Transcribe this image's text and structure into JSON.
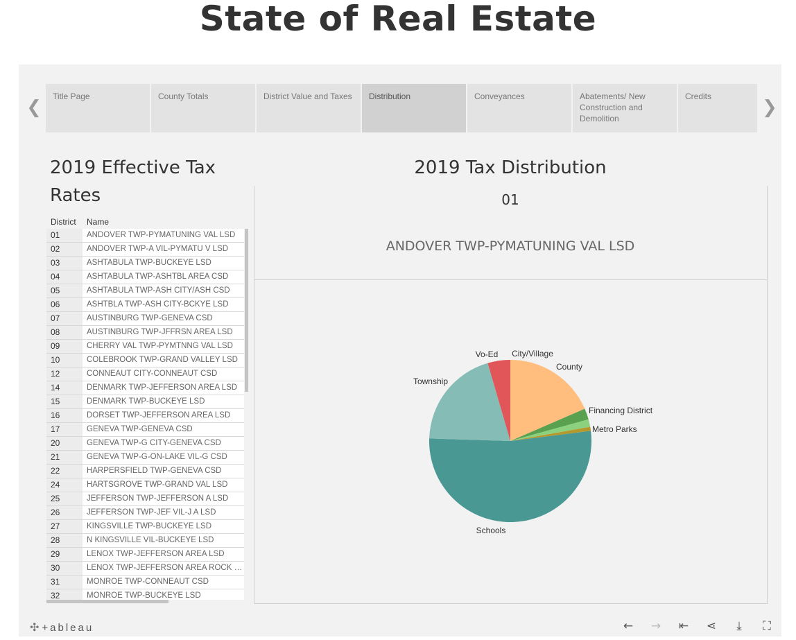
{
  "page": {
    "title": "State of Real Estate"
  },
  "nav": {
    "prev_icon": "chevron-left-icon",
    "next_icon": "chevron-right-icon",
    "tabs": [
      {
        "label": "Title Page"
      },
      {
        "label": "County Totals"
      },
      {
        "label": "District Value and Taxes"
      },
      {
        "label": "Distribution",
        "active": true
      },
      {
        "label": "Conveyances"
      },
      {
        "label": "Abatements/ New Construction and Demolition"
      },
      {
        "label": "Credits"
      }
    ]
  },
  "rates": {
    "title": "2019 Effective Tax Rates",
    "col_district": "District",
    "col_name": "Name",
    "rows": [
      [
        "01",
        "ANDOVER TWP-PYMATUNING VAL LSD"
      ],
      [
        "02",
        "ANDOVER TWP-A VIL-PYMATU V LSD"
      ],
      [
        "03",
        "ASHTABULA TWP-BUCKEYE LSD"
      ],
      [
        "04",
        "ASHTABULA TWP-ASHTBL AREA CSD"
      ],
      [
        "05",
        "ASHTABULA TWP-ASH CITY/ASH CSD"
      ],
      [
        "06",
        "ASHTBLA TWP-ASH CITY-BCKYE LSD"
      ],
      [
        "07",
        "AUSTINBURG TWP-GENEVA CSD"
      ],
      [
        "08",
        "AUSTINBURG TWP-JFFRSN AREA LSD"
      ],
      [
        "09",
        "CHERRY VAL TWP-PYMTNNG VAL LSD"
      ],
      [
        "10",
        "COLEBROOK TWP-GRAND VALLEY LSD"
      ],
      [
        "12",
        "CONNEAUT CITY-CONNEAUT CSD"
      ],
      [
        "14",
        "DENMARK TWP-JEFFERSON AREA LSD"
      ],
      [
        "15",
        "DENMARK TWP-BUCKEYE LSD"
      ],
      [
        "16",
        "DORSET TWP-JEFFERSON AREA LSD"
      ],
      [
        "17",
        "GENEVA TWP-GENEVA CSD"
      ],
      [
        "20",
        "GENEVA TWP-G CITY-GENEVA CSD"
      ],
      [
        "21",
        "GENEVA TWP-G-ON-LAKE VIL-G CSD"
      ],
      [
        "22",
        "HARPERSFIELD TWP-GENEVA CSD"
      ],
      [
        "24",
        "HARTSGROVE TWP-GRAND VAL LSD"
      ],
      [
        "25",
        "JEFFERSON TWP-JEFFERSON A LSD"
      ],
      [
        "26",
        "JEFFERSON TWP-JEF VIL-J A LSD"
      ],
      [
        "27",
        "KINGSVILLE TWP-BUCKEYE LSD"
      ],
      [
        "28",
        "N KINGSVILLE VIL-BUCKEYE LSD"
      ],
      [
        "29",
        "LENOX TWP-JEFFERSON AREA LSD"
      ],
      [
        "30",
        "LENOX TWP-JEFFERSON AREA ROCK C.."
      ],
      [
        "31",
        "MONROE TWP-CONNEAUT CSD"
      ],
      [
        "32",
        "MONROE TWP-BUCKEYE LSD"
      ]
    ]
  },
  "distribution": {
    "title": "2019 Tax Distribution",
    "district_code": "01",
    "district_name": "ANDOVER TWP-PYMATUNING VAL LSD"
  },
  "chart_data": {
    "type": "pie",
    "title": "",
    "unit": "share of tax",
    "slices": [
      {
        "label": "City/Village",
        "value": 0.0,
        "color": "#f28e2b"
      },
      {
        "label": "County",
        "value": 18.5,
        "color": "#ffbe7d"
      },
      {
        "label": "Financing District",
        "value": 2.2,
        "color": "#59a14f"
      },
      {
        "label": "Metro Parks",
        "value": 1.5,
        "color": "#8cd17d"
      },
      {
        "label": "",
        "value": 0.8,
        "color": "#b6992d"
      },
      {
        "label": "Schools",
        "value": 52.5,
        "color": "#499894"
      },
      {
        "label": "Township",
        "value": 20.0,
        "color": "#86bcb6"
      },
      {
        "label": "Vo-Ed",
        "value": 4.5,
        "color": "#e15759"
      }
    ]
  },
  "footer": {
    "logo_text": "+ableau",
    "logo_icon": "tableau-logo-icon",
    "tools": [
      {
        "icon": "undo-icon",
        "glyph": "←"
      },
      {
        "icon": "redo-icon",
        "glyph": "→"
      },
      {
        "icon": "revert-icon",
        "glyph": "⇤"
      },
      {
        "icon": "share-icon",
        "glyph": "⋖"
      },
      {
        "icon": "download-icon",
        "glyph": "⤓"
      },
      {
        "icon": "fullscreen-icon",
        "glyph": "⛶"
      }
    ]
  }
}
